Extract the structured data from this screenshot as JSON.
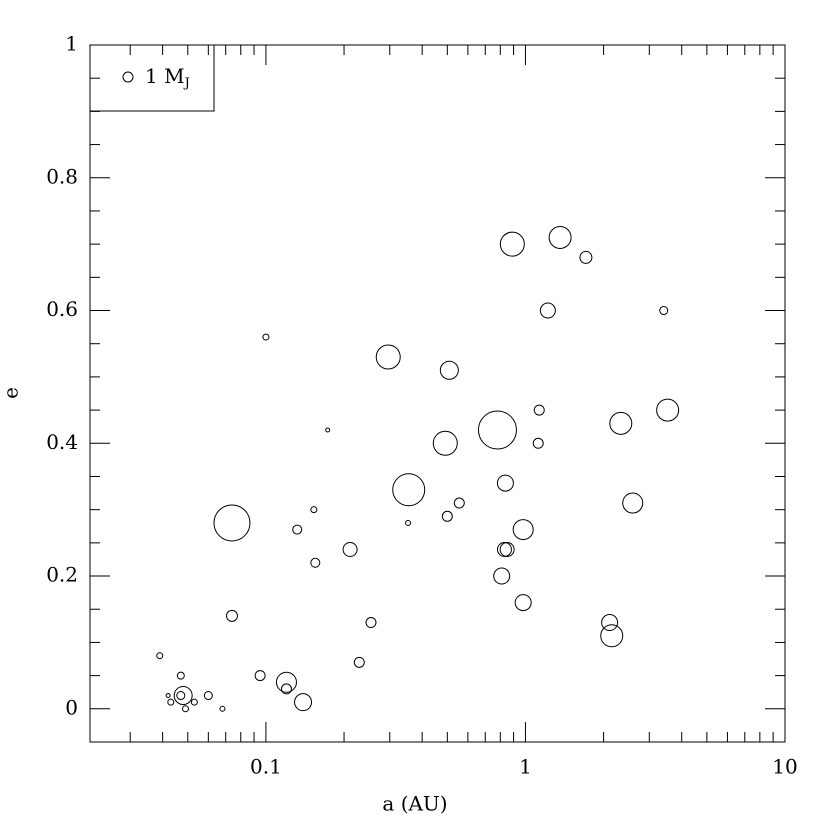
{
  "chart_data": {
    "type": "scatter",
    "xlabel": "a (AU)",
    "ylabel": "e",
    "xscale": "log",
    "xlim": [
      0.021,
      10
    ],
    "ylim": [
      -0.05,
      1
    ],
    "xticks": [
      0.1,
      1,
      10
    ],
    "yticks": [
      0,
      0.2,
      0.4,
      0.6,
      0.8,
      1
    ],
    "xminorticks": [
      0.03,
      0.04,
      0.05,
      0.06,
      0.07,
      0.08,
      0.09,
      0.2,
      0.3,
      0.4,
      0.5,
      0.6,
      0.7,
      0.8,
      0.9,
      2,
      3,
      4,
      5,
      6,
      7,
      8,
      9
    ],
    "yminorticks": [
      -0.05,
      0.05,
      0.1,
      0.15,
      0.25,
      0.3,
      0.35,
      0.45,
      0.5,
      0.55,
      0.65,
      0.7,
      0.75,
      0.85,
      0.9,
      0.95
    ],
    "legend": {
      "label": "1 M",
      "subscript": "J",
      "size": 1,
      "position": "upper left"
    },
    "color": "#000000",
    "x": [
      0.039,
      0.042,
      0.043,
      0.047,
      0.048,
      0.047,
      0.049,
      0.053,
      0.06,
      0.068,
      0.074,
      0.074,
      0.095,
      0.1,
      0.12,
      0.12,
      0.139,
      0.132,
      0.153,
      0.155,
      0.173,
      0.211,
      0.229,
      0.254,
      0.296,
      0.353,
      0.355,
      0.491,
      0.509,
      0.5,
      0.556,
      0.78,
      0.837,
      0.83,
      0.85,
      0.81,
      0.89,
      0.98,
      0.98,
      1.12,
      1.13,
      1.22,
      1.36,
      1.71,
      2.11,
      2.15,
      2.33,
      2.59,
      3.41,
      3.53
    ],
    "y": [
      0.08,
      0.02,
      0.01,
      0.05,
      0.02,
      0.02,
      0,
      0.01,
      0.02,
      0,
      0.14,
      0.28,
      0.05,
      0.56,
      0.04,
      0.03,
      0.01,
      0.27,
      0.3,
      0.22,
      0.42,
      0.24,
      0.07,
      0.13,
      0.53,
      0.28,
      0.33,
      0.4,
      0.51,
      0.29,
      0.31,
      0.42,
      0.34,
      0.24,
      0.24,
      0.2,
      0.7,
      0.27,
      0.16,
      0.4,
      0.45,
      0.6,
      0.71,
      0.68,
      0.13,
      0.11,
      0.43,
      0.31,
      0.6,
      0.45
    ],
    "sizes": [
      0.6,
      0.4,
      0.6,
      0.7,
      1.8,
      0.8,
      0.6,
      0.6,
      0.8,
      0.5,
      1.1,
      3.6,
      1.0,
      0.6,
      2.0,
      1.0,
      1.7,
      0.9,
      0.6,
      0.9,
      0.4,
      1.4,
      1.0,
      1.0,
      2.4,
      0.5,
      3.2,
      2.4,
      1.8,
      1.0,
      1.0,
      3.8,
      1.6,
      1.4,
      1.4,
      1.6,
      2.4,
      2.0,
      1.6,
      1.0,
      1.0,
      1.5,
      2.2,
      1.2,
      1.6,
      2.2,
      2.2,
      2.0,
      0.8,
      2.2
    ]
  }
}
